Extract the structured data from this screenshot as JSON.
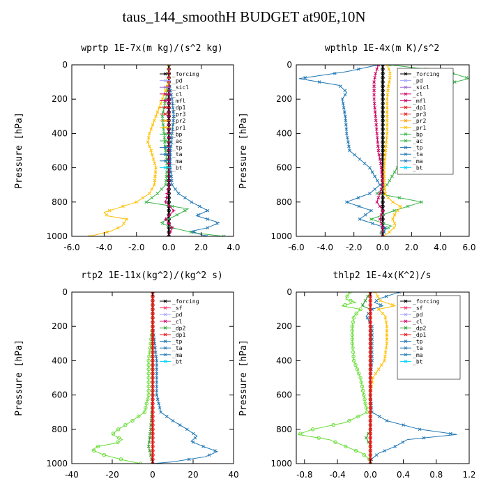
{
  "title": "taus_144_smoothH  BUDGET at90E,10N",
  "chart_data": [
    {
      "type": "line",
      "title": "wprtp  1E-7x(m kg)/(s^2 kg)",
      "ylabel": "Pressure [hPa]",
      "xlim": [
        -6,
        4
      ],
      "ylim": [
        1000,
        0
      ],
      "xticks": [
        "-6.0",
        "-4.0",
        "-2.0",
        "0.0",
        "2.0",
        "4.0"
      ],
      "xtick_values": [
        -6,
        -4,
        -2,
        0,
        2,
        4
      ],
      "yticks": [
        "0",
        "200",
        "400",
        "600",
        "800",
        "1000"
      ],
      "ytick_values": [
        0,
        200,
        400,
        600,
        800,
        1000
      ],
      "legend_loc": "top-right",
      "legend": [
        "_forcing",
        "_pd",
        "_sicl",
        "_cl",
        "_mfl",
        "_dp1",
        "_pr3",
        "_pr2",
        "_pr1",
        "_bp",
        "_ac",
        "_tp",
        "_ta",
        "_ma",
        "_bt"
      ],
      "series": [
        {
          "name": "_forcing",
          "color": "#000000",
          "marker": "o",
          "p": [
            0,
            100,
            200,
            300,
            400,
            500,
            600,
            700,
            800,
            900,
            1000
          ],
          "x": [
            0,
            0,
            0,
            0,
            0,
            0,
            0,
            0,
            0,
            0,
            0
          ]
        },
        {
          "name": "_ac",
          "color": "#3cb44b",
          "marker": "x",
          "p": [
            0,
            100,
            200,
            300,
            400,
            500,
            600,
            700,
            750,
            800,
            840,
            880,
            920,
            950,
            980,
            1000
          ],
          "x": [
            0,
            0,
            -0.2,
            -0.4,
            -0.3,
            -0.2,
            -0.1,
            -0.2,
            -0.7,
            -1.4,
            1.2,
            0.4,
            -0.5,
            0.2,
            1.6,
            3.4
          ]
        },
        {
          "name": "_tp",
          "color": "#1f77b4",
          "marker": "x",
          "p": [
            0,
            100,
            200,
            300,
            400,
            500,
            600,
            700,
            750,
            800,
            850,
            880,
            920,
            950,
            970,
            1000
          ],
          "x": [
            0,
            0,
            0.2,
            0.3,
            0.2,
            0.1,
            0.1,
            0.2,
            0.6,
            1.4,
            2.4,
            1.7,
            3.1,
            2.4,
            1.4,
            2.3
          ]
        },
        {
          "name": "_pr1",
          "color": "#ffc000",
          "marker": "x",
          "p": [
            0,
            100,
            200,
            300,
            350,
            400,
            450,
            500,
            600,
            700,
            750,
            800,
            830,
            860,
            880,
            900,
            940,
            970,
            1000
          ],
          "x": [
            0,
            0,
            -0.4,
            -0.8,
            -1.0,
            -1.2,
            -1.3,
            -1.1,
            -0.8,
            -0.9,
            -1.2,
            -2.0,
            -3.0,
            -4.0,
            -3.8,
            -2.6,
            -2.9,
            -3.6,
            -4.9
          ]
        },
        {
          "name": "_cl",
          "color": "#cc0066",
          "marker": "+",
          "p": [
            0,
            100,
            200,
            300,
            400,
            500,
            600,
            700,
            800,
            850,
            900,
            950,
            1000
          ],
          "x": [
            0,
            0,
            0,
            0,
            0,
            0,
            0,
            0,
            -0.2,
            0.3,
            -0.2,
            0.2,
            0
          ]
        }
      ]
    },
    {
      "type": "line",
      "title": "wpthlp  1E-4x(m K)/s^2",
      "ylabel": "Pressure [hPa]",
      "xlim": [
        -6,
        6
      ],
      "ylim": [
        1000,
        0
      ],
      "xticks": [
        "-6.0",
        "-4.0",
        "-2.0",
        "0.0",
        "2.0",
        "4.0",
        "6.0"
      ],
      "xtick_values": [
        -6,
        -4,
        -2,
        0,
        2,
        4,
        6
      ],
      "yticks": [
        "0",
        "200",
        "400",
        "600",
        "800",
        "1000"
      ],
      "ytick_values": [
        0,
        200,
        400,
        600,
        800,
        1000
      ],
      "legend_loc": "top-right",
      "legend": [
        "_forcing",
        "_pd",
        "_sicl",
        "_cl",
        "_mfl",
        "_dp1",
        "_pr3",
        "_pr2",
        "_pr1",
        "_bp",
        "_ac",
        "_tp",
        "_ta",
        "_ma",
        "_bt"
      ],
      "series": [
        {
          "name": "_forcing",
          "color": "#000000",
          "marker": "o",
          "p": [
            0,
            100,
            200,
            300,
            400,
            500,
            600,
            700,
            800,
            900,
            1000
          ],
          "x": [
            0,
            0,
            0,
            0,
            0,
            0,
            0,
            0,
            0,
            0,
            0
          ]
        },
        {
          "name": "_ac",
          "color": "#3cb44b",
          "marker": "x",
          "p": [
            0,
            40,
            80,
            120,
            160,
            200,
            300,
            400,
            500,
            550,
            600,
            700,
            750,
            800,
            850,
            900,
            940,
            980,
            1000
          ],
          "x": [
            0.5,
            4.5,
            6.0,
            4.0,
            2.8,
            2.4,
            2.5,
            3.0,
            2.6,
            1.8,
            1.0,
            0.3,
            -0.4,
            2.7,
            0.8,
            -0.8,
            0.6,
            -0.2,
            0
          ]
        },
        {
          "name": "_tp",
          "color": "#1f77b4",
          "marker": "x",
          "p": [
            0,
            40,
            80,
            120,
            160,
            200,
            300,
            400,
            500,
            550,
            600,
            700,
            750,
            800,
            850,
            900,
            950,
            1000
          ],
          "x": [
            -0.3,
            -2.5,
            -5.8,
            -3.0,
            -2.5,
            -2.8,
            -2.6,
            -2.5,
            -2.3,
            -1.6,
            -0.9,
            -0.2,
            -0.9,
            -2.5,
            -0.8,
            -1.6,
            0.2,
            0
          ]
        },
        {
          "name": "_pr1",
          "color": "#ffc000",
          "marker": "x",
          "p": [
            0,
            40,
            80,
            120,
            200,
            300,
            400,
            500,
            600,
            700,
            760,
            800,
            830,
            860,
            900,
            940,
            980,
            1000
          ],
          "x": [
            0.3,
            0.5,
            0.5,
            0.4,
            0.3,
            0.3,
            0.3,
            0.2,
            0.1,
            0.1,
            0.2,
            0.7,
            1.3,
            0.9,
            0.7,
            0.9,
            0.4,
            0
          ]
        },
        {
          "name": "_mfl",
          "color": "#cc0066",
          "marker": "x",
          "p": [
            0,
            50,
            100,
            200,
            300,
            400,
            500,
            600,
            700,
            800,
            850,
            900,
            950,
            1000
          ],
          "x": [
            -0.3,
            -0.5,
            -0.6,
            -0.6,
            -0.5,
            -0.4,
            -0.3,
            -0.1,
            0,
            -0.4,
            0,
            -0.2,
            0,
            0
          ]
        }
      ]
    },
    {
      "type": "line",
      "title": "rtp2  1E-11x(kg^2)/(kg^2 s)",
      "ylabel": "Pressure [hPa]",
      "xlim": [
        -40,
        40
      ],
      "ylim": [
        1000,
        0
      ],
      "xticks": [
        "-40",
        "-20",
        "0",
        "20",
        "40"
      ],
      "xtick_values": [
        -40,
        -20,
        0,
        20,
        40
      ],
      "yticks": [
        "0",
        "200",
        "400",
        "600",
        "800",
        "1000"
      ],
      "ytick_values": [
        0,
        200,
        400,
        600,
        800,
        1000
      ],
      "legend_loc": "top-right",
      "legend": [
        "_forcing",
        "_sf",
        "_pd",
        "_cl",
        "_dp2",
        "_dp1",
        "_tp",
        "_ta",
        "_ma",
        "_bt"
      ],
      "series": [
        {
          "name": "_dp1",
          "color": "#66dd33",
          "marker": "o",
          "p": [
            0,
            100,
            200,
            300,
            400,
            500,
            600,
            700,
            750,
            800,
            830,
            860,
            880,
            900,
            920,
            950,
            980,
            1000
          ],
          "x": [
            0,
            0,
            0,
            -1,
            -2,
            -2,
            -2,
            -4,
            -10,
            -17,
            -20,
            -15,
            -18,
            -27,
            -30,
            -24,
            -14,
            -6
          ]
        },
        {
          "name": "_tp",
          "color": "#1f77b4",
          "marker": "x",
          "p": [
            0,
            100,
            200,
            300,
            400,
            500,
            600,
            700,
            750,
            800,
            840,
            870,
            900,
            930,
            960,
            990,
            1000
          ],
          "x": [
            0,
            0,
            0,
            1,
            2,
            2,
            2,
            4,
            10,
            17,
            22,
            19,
            25,
            32,
            26,
            10,
            0
          ]
        },
        {
          "name": "_dp2",
          "color": "#2ca02c",
          "marker": "x",
          "p": [
            0,
            300,
            600,
            800,
            900,
            950,
            1000
          ],
          "x": [
            0,
            0,
            0,
            -1,
            -2,
            -1,
            0
          ]
        },
        {
          "name": "_forcing",
          "color": "#e41a1c",
          "marker": "o",
          "p": [
            0,
            100,
            200,
            300,
            400,
            500,
            600,
            700,
            800,
            900,
            1000
          ],
          "x": [
            0,
            0,
            0,
            0,
            0,
            0,
            0,
            0,
            0,
            0,
            0
          ]
        }
      ]
    },
    {
      "type": "line",
      "title": "thlp2  1E-4x(K^2)/s",
      "ylabel": "Pressure [hPa]",
      "xlim": [
        -0.9,
        1.2
      ],
      "ylim": [
        1000,
        0
      ],
      "xticks": [
        "-0.8",
        "-0.4",
        "0.0",
        "0.4",
        "0.8",
        "1.2"
      ],
      "xtick_values": [
        -0.8,
        -0.4,
        0,
        0.4,
        0.8,
        1.2
      ],
      "yticks": [
        "0",
        "200",
        "400",
        "600",
        "800",
        "1000"
      ],
      "ytick_values": [
        0,
        200,
        400,
        600,
        800,
        1000
      ],
      "legend_loc": "top-right",
      "legend": [
        "_forcing",
        "_sf",
        "_pd",
        "_cl",
        "_dp2",
        "_dp1",
        "_tp",
        "_ta",
        "_ma",
        "_bt"
      ],
      "series": [
        {
          "name": "_dp1",
          "color": "#66dd33",
          "marker": "o",
          "p": [
            0,
            40,
            60,
            80,
            100,
            140,
            200,
            300,
            400,
            500,
            600,
            700,
            760,
            800,
            830,
            860,
            900,
            940,
            980,
            1000
          ],
          "x": [
            -0.25,
            -0.3,
            -0.18,
            -0.35,
            -0.12,
            -0.2,
            -0.22,
            -0.22,
            -0.2,
            -0.12,
            -0.08,
            -0.04,
            -0.3,
            -0.7,
            -0.88,
            -0.5,
            -0.3,
            -0.1,
            0,
            0
          ]
        },
        {
          "name": "_tp",
          "color": "#1f77b4",
          "marker": "x",
          "p": [
            0,
            40,
            60,
            80,
            100,
            140,
            200,
            300,
            400,
            500,
            600,
            700,
            750,
            800,
            830,
            860,
            900,
            940,
            980,
            1000
          ],
          "x": [
            0.35,
            0.1,
            0.05,
            0.15,
            0.02,
            -0.05,
            0.02,
            0.02,
            0.02,
            0,
            0,
            0.02,
            0.2,
            0.6,
            1.05,
            0.45,
            0.3,
            0.1,
            0,
            0
          ]
        },
        {
          "name": "_pd",
          "color": "#ffc000",
          "marker": "x",
          "p": [
            0,
            50,
            80,
            100,
            140,
            200,
            300,
            400,
            450,
            500,
            600,
            700,
            800,
            900,
            1000
          ],
          "x": [
            0.06,
            0.12,
            0.3,
            0.1,
            0.18,
            0.2,
            0.2,
            0.17,
            0.1,
            0.03,
            0,
            0,
            0,
            0,
            0
          ]
        },
        {
          "name": "_dp2",
          "color": "#2ca02c",
          "marker": "x",
          "p": [
            0,
            80,
            100,
            200,
            400,
            600,
            800,
            850,
            900,
            1000
          ],
          "x": [
            0,
            -0.1,
            0,
            0,
            0,
            0,
            0,
            -0.05,
            0,
            0
          ]
        },
        {
          "name": "_forcing",
          "color": "#e41a1c",
          "marker": "o",
          "p": [
            0,
            100,
            200,
            300,
            400,
            500,
            600,
            700,
            800,
            900,
            1000
          ],
          "x": [
            0,
            0,
            0,
            0,
            0,
            0,
            0,
            0,
            0,
            0,
            0
          ]
        }
      ]
    }
  ]
}
